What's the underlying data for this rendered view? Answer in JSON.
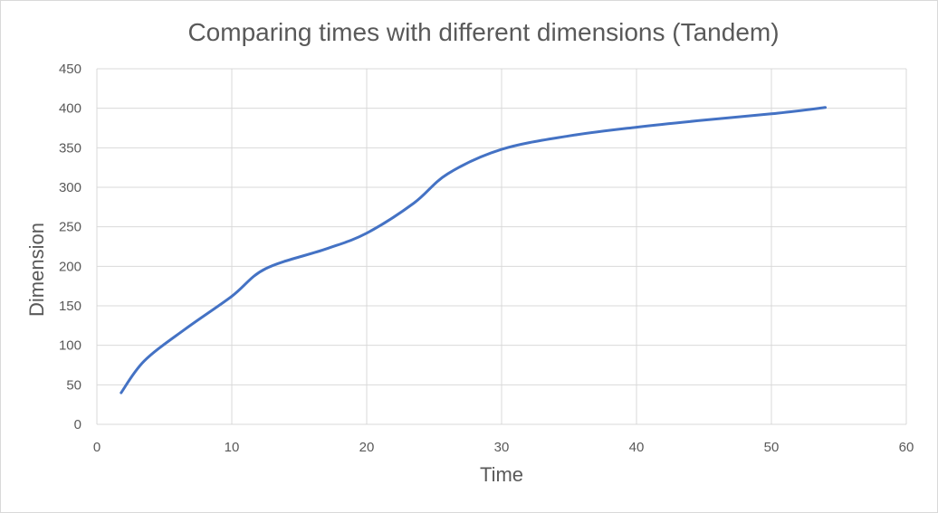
{
  "chart_data": {
    "type": "line",
    "title": "Comparing times with different dimensions (Tandem)",
    "xlabel": "Time",
    "ylabel": "Dimension",
    "xlim": [
      0,
      60
    ],
    "ylim": [
      0,
      450
    ],
    "x_ticks": [
      "0",
      "10",
      "20",
      "30",
      "40",
      "50",
      "60"
    ],
    "y_ticks": [
      "0",
      "50",
      "100",
      "150",
      "200",
      "250",
      "300",
      "350",
      "400",
      "450"
    ],
    "grid": true,
    "legend": "none",
    "series": [
      {
        "color": "#4472c4",
        "points": [
          [
            1.8,
            40
          ],
          [
            3.5,
            80
          ],
          [
            6.5,
            120
          ],
          [
            10,
            162
          ],
          [
            12.5,
            197
          ],
          [
            17,
            222
          ],
          [
            20,
            242
          ],
          [
            23.5,
            280
          ],
          [
            26,
            317
          ],
          [
            30,
            348
          ],
          [
            35,
            365
          ],
          [
            40,
            376
          ],
          [
            45,
            385
          ],
          [
            50,
            393
          ],
          [
            54,
            401
          ]
        ]
      }
    ]
  }
}
